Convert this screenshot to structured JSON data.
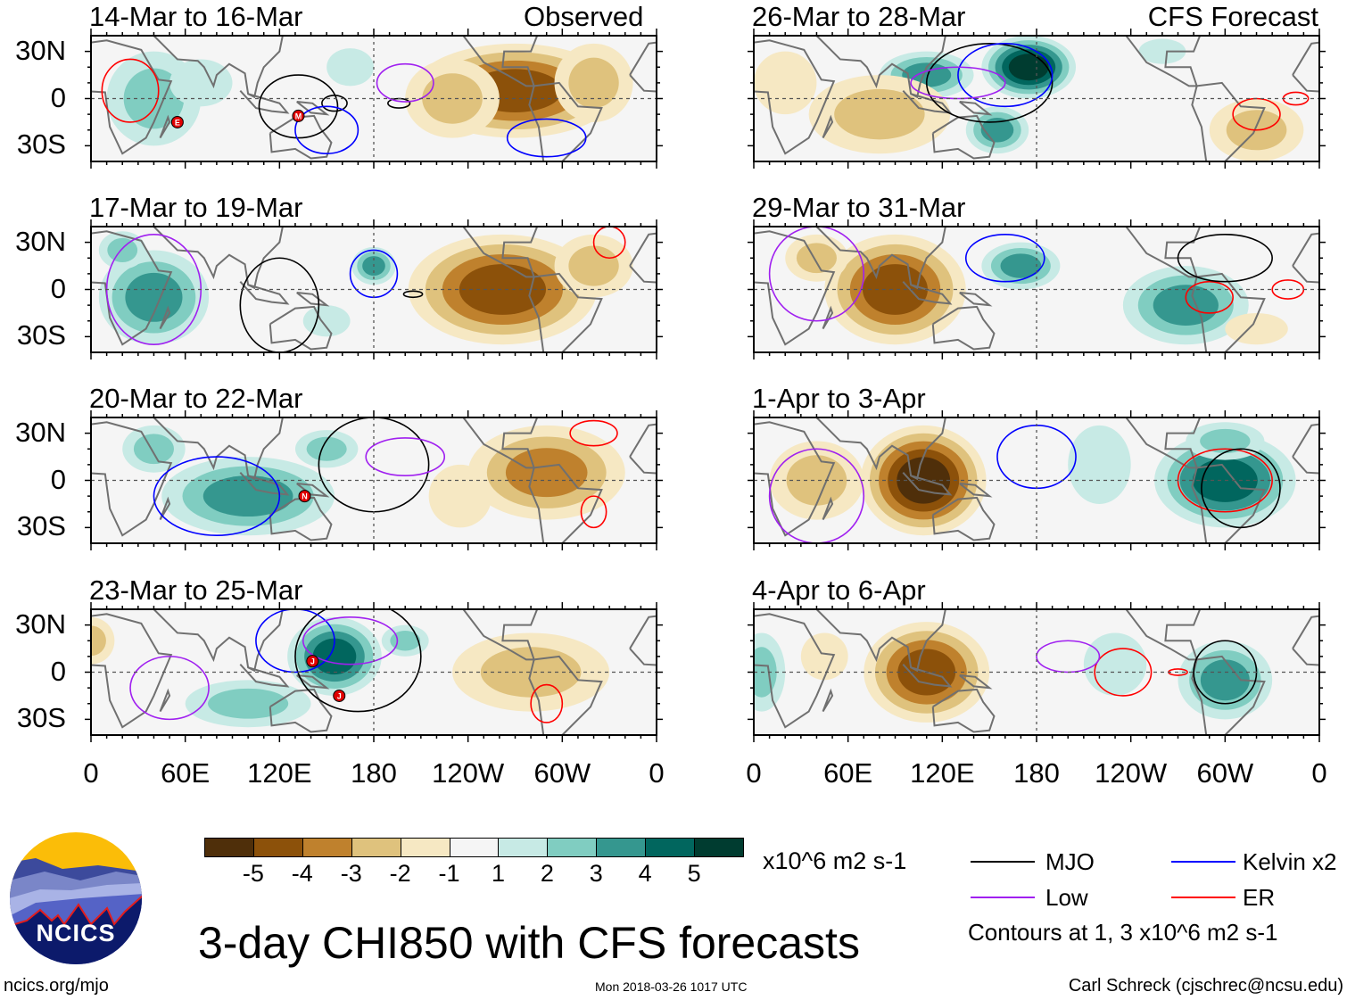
{
  "title": "3-day CHI850 with CFS forecasts",
  "columns": {
    "left_label": "Observed",
    "right_label": "CFS Forecast"
  },
  "panels": [
    {
      "title": "14-Mar to 16-Mar",
      "storms": [
        {
          "letter": "E",
          "lon": 55,
          "lat": -15
        },
        {
          "letter": "M",
          "lon": 132,
          "lat": -11
        }
      ]
    },
    {
      "title": "17-Mar to 19-Mar",
      "storms": []
    },
    {
      "title": "20-Mar to 22-Mar",
      "storms": [
        {
          "letter": "N",
          "lon": 136,
          "lat": -10
        }
      ]
    },
    {
      "title": "23-Mar to 25-Mar",
      "storms": [
        {
          "letter": "J",
          "lon": 141,
          "lat": 7
        },
        {
          "letter": "J",
          "lon": 158,
          "lat": -15
        }
      ]
    },
    {
      "title": "26-Mar to 28-Mar",
      "storms": []
    },
    {
      "title": "29-Mar to 31-Mar",
      "storms": []
    },
    {
      "title": "1-Apr to 3-Apr",
      "storms": []
    },
    {
      "title": "4-Apr to 6-Apr",
      "storms": []
    }
  ],
  "lat_labels": [
    "30N",
    "0",
    "30S"
  ],
  "lon_labels": [
    "0",
    "60E",
    "120E",
    "180",
    "120W",
    "60W",
    "0"
  ],
  "colorbar": {
    "labels": [
      "-5",
      "-4",
      "-3",
      "-2",
      "-1",
      "1",
      "2",
      "3",
      "4",
      "5"
    ],
    "colors": [
      "#4f2f0a",
      "#8c510a",
      "#bf812d",
      "#dfc27d",
      "#f6e8c3",
      "#f5f5f5",
      "#c7eae5",
      "#80cdc1",
      "#35978f",
      "#01665e",
      "#003c30"
    ],
    "units": "x10^6 m2 s-1"
  },
  "legend": {
    "items": [
      {
        "label": "MJO",
        "color": "#000000"
      },
      {
        "label": "Low",
        "color": "#a020f0"
      },
      {
        "label": "Kelvin x2",
        "color": "#0000ff"
      },
      {
        "label": "ER",
        "color": "#ff0000"
      }
    ],
    "note": "Contours at 1, 3 x10^6 m2 s-1"
  },
  "logo": {
    "text": "NCICS"
  },
  "footer": {
    "url": "ncics.org/mjo",
    "timestamp": "Mon 2018-03-26 1017 UTC",
    "author": "Carl Schreck (cjschrec@ncsu.edu)"
  }
}
